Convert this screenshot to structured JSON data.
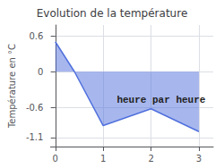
{
  "chart_data": {
    "type": "area",
    "title": "Evolution de la température",
    "ylabel": "Température en °C",
    "annotations": [
      "heure par heure"
    ],
    "x": [
      0,
      0.4,
      1,
      2,
      3
    ],
    "values": [
      0.5,
      0.0,
      -0.9,
      -0.62,
      -1.0
    ],
    "xlim": [
      -0.1,
      3.3
    ],
    "ylim": [
      -1.25,
      0.78
    ],
    "xticks": [
      0,
      1,
      2,
      3
    ],
    "yticks": [
      -1.1,
      -0.6,
      0.0,
      0.6
    ],
    "grid": true
  }
}
